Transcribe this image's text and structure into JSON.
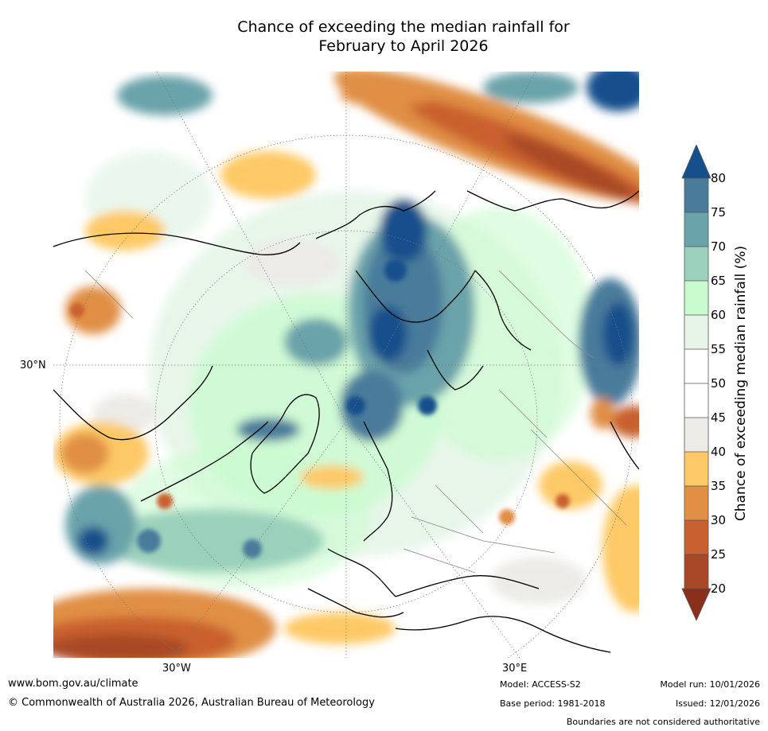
{
  "title": {
    "line1": "Chance of exceeding the median rainfall for",
    "line2": "February to April 2026"
  },
  "map": {
    "lat_label": "30°N",
    "lon_labels": [
      "30°W",
      "30°E"
    ]
  },
  "colorbar": {
    "label": "Chance of exceeding median rainfall (%)",
    "ticks": [
      "80",
      "75",
      "70",
      "65",
      "60",
      "55",
      "50",
      "45",
      "40",
      "35",
      "30",
      "25",
      "20"
    ],
    "colors": {
      "above_80": "#154f8c",
      "75_80": "#497b9b",
      "70_75": "#6aa3aa",
      "65_70": "#9bd1bc",
      "60_65": "#c9fbcf",
      "55_60": "#e6f5e8",
      "45_55": "#ffffff",
      "40_45": "#ecebe7",
      "35_40": "#fdc966",
      "30_35": "#e08f44",
      "25_30": "#c9602f",
      "20_25": "#a84826",
      "below_20": "#8a2f1c"
    }
  },
  "footer": {
    "website": "www.bom.gov.au/climate",
    "copyright": "© Commonwealth of Australia 2026, Australian Bureau of Meteorology",
    "model": "Model: ACCESS-S2",
    "model_run": "Model run: 10/01/2026",
    "base_period": "Base period: 1981-2018",
    "issued": "Issued: 12/01/2026",
    "disclaimer": "Boundaries are not considered authoritative"
  }
}
